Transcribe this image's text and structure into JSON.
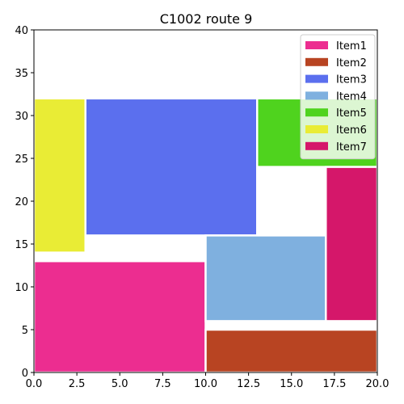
{
  "chart_data": {
    "type": "bar",
    "title": "C1002 route 9",
    "xlabel": "",
    "ylabel": "",
    "xlim": [
      0,
      20
    ],
    "ylim": [
      0,
      40
    ],
    "xticks": [
      0,
      2.5,
      5,
      7.5,
      10,
      12.5,
      15,
      17.5,
      20
    ],
    "xtick_labels": [
      "0.0",
      "2.5",
      "5.0",
      "7.5",
      "10.0",
      "12.5",
      "15.0",
      "17.5",
      "20.0"
    ],
    "yticks": [
      0,
      5,
      10,
      15,
      20,
      25,
      30,
      35,
      40
    ],
    "ytick_labels": [
      "0",
      "5",
      "10",
      "15",
      "20",
      "25",
      "30",
      "35",
      "40"
    ],
    "grid": false,
    "legend_position": "top-right",
    "series": [
      {
        "name": "Item1",
        "color": "#ec2d90",
        "x0": 0,
        "x1": 10,
        "y0": 0,
        "y1": 13
      },
      {
        "name": "Item2",
        "color": "#b84422",
        "x0": 10,
        "x1": 20,
        "y0": 0,
        "y1": 5
      },
      {
        "name": "Item3",
        "color": "#5b6fee",
        "x0": 3,
        "x1": 13,
        "y0": 16,
        "y1": 32
      },
      {
        "name": "Item4",
        "color": "#7fb0df",
        "x0": 10,
        "x1": 17,
        "y0": 6,
        "y1": 16
      },
      {
        "name": "Item5",
        "color": "#4fd31e",
        "x0": 13,
        "x1": 20,
        "y0": 24,
        "y1": 32
      },
      {
        "name": "Item6",
        "color": "#e9ec35",
        "x0": 0,
        "x1": 3,
        "y0": 14,
        "y1": 32
      },
      {
        "name": "Item7",
        "color": "#d5176a",
        "x0": 17,
        "x1": 20,
        "y0": 6,
        "y1": 24
      }
    ]
  }
}
